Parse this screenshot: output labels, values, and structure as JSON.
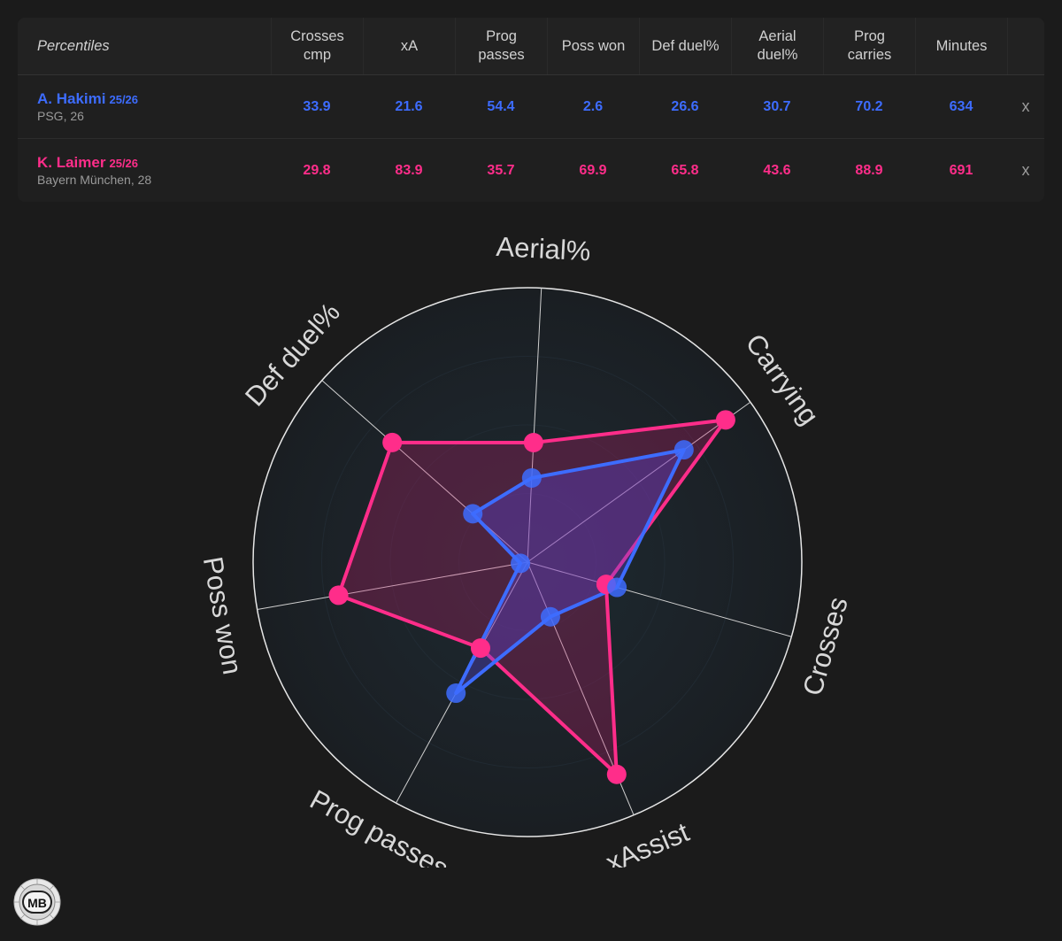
{
  "table": {
    "header_label": "Percentiles",
    "columns": [
      "Crosses\ncmp",
      "xA",
      "Prog\npasses",
      "Poss won",
      "Def duel%",
      "Aerial\nduel%",
      "Prog\ncarries",
      "Minutes"
    ],
    "remove_label": "x",
    "players": [
      {
        "name": "A. Hakimi",
        "season": "25/26",
        "sub": "PSG, 26",
        "values": [
          "33.9",
          "21.6",
          "54.4",
          "2.6",
          "26.6",
          "30.7",
          "70.2",
          "634"
        ]
      },
      {
        "name": "K. Laimer",
        "season": "25/26",
        "sub": "Bayern München, 28",
        "values": [
          "29.8",
          "83.9",
          "35.7",
          "69.9",
          "65.8",
          "43.6",
          "88.9",
          "691"
        ]
      }
    ]
  },
  "colors": {
    "player1": "#3d6cff",
    "player2": "#ff2d8a",
    "background": "#1b1b1b"
  },
  "chart_data": {
    "type": "radar",
    "axes": [
      "Aerial%",
      "Carrying",
      "Crosses",
      "xAssist",
      "Prog passes",
      "Poss won",
      "Def duel%"
    ],
    "range": [
      0,
      100
    ],
    "series": [
      {
        "name": "A. Hakimi",
        "values": [
          30.7,
          70.2,
          33.9,
          21.6,
          54.4,
          2.6,
          26.6
        ]
      },
      {
        "name": "K. Laimer",
        "values": [
          43.6,
          88.9,
          29.8,
          83.9,
          35.7,
          69.9,
          65.8
        ]
      }
    ]
  },
  "logo": {
    "text": "MB"
  }
}
